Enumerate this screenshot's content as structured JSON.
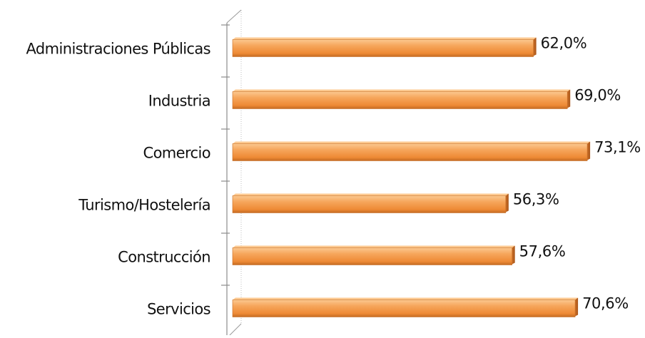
{
  "chart_data": {
    "type": "bar",
    "orientation": "horizontal",
    "categories": [
      "Administraciones Públicas",
      "Industria",
      "Comercio",
      "Turismo/Hostelería",
      "Construcción",
      "Servicios"
    ],
    "values": [
      62.0,
      69.0,
      73.1,
      56.3,
      57.6,
      70.6
    ],
    "value_labels": [
      "62,0%",
      "69,0%",
      "73,1%",
      "56,3%",
      "57,6%",
      "70,6%"
    ],
    "unit": "%",
    "title": "",
    "xlabel": "",
    "ylabel": "",
    "grid": false,
    "legend": "none",
    "bar_color": "#f39a4a",
    "bar_highlight": "#fcc990",
    "bar_shadow": "#b4621d"
  }
}
